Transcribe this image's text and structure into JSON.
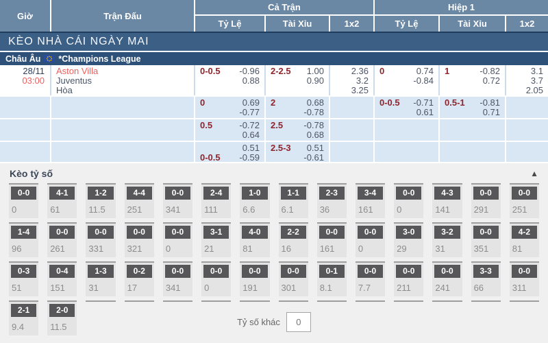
{
  "table_header": {
    "time": "Giờ",
    "match": "Trận Đấu",
    "full_time": "Cả Trận",
    "first_half": "Hiệp 1",
    "sub": {
      "hdp": "Tỷ Lệ",
      "ou": "Tài Xỉu",
      "oneXtwo": "1x2"
    }
  },
  "banner": {
    "title": "KÈO NHÀ CÁI NGÀY MAI"
  },
  "league": {
    "region": "Châu Âu",
    "flag_icon": "eu-flag-icon",
    "name": "*Champions League"
  },
  "match": {
    "date": "28/11",
    "time": "03:00",
    "home": "Aston Villa",
    "away": "Juventus",
    "draw_label": "Hòa"
  },
  "odds_rows": [
    [
      {
        "label": "0-0.5",
        "line": 1,
        "v1": "-0.96",
        "v2": "0.88"
      },
      {
        "label": "2-2.5",
        "line": 1,
        "v1": "1.00",
        "v2": "0.90"
      },
      {
        "x2": [
          "2.36",
          "3.2",
          "3.25"
        ]
      },
      {
        "label": "0",
        "line": 1,
        "v1": "0.74",
        "v2": "-0.84"
      },
      {
        "label": "1",
        "line": 1,
        "v1": "-0.82",
        "v2": "0.72"
      },
      {
        "x2": [
          "3.1",
          "3.7",
          "2.05"
        ]
      }
    ],
    [
      {
        "label": "0",
        "line": 1,
        "v1": "0.69",
        "v2": "-0.77"
      },
      {
        "label": "2",
        "line": 1,
        "v1": "0.68",
        "v2": "-0.78"
      },
      null,
      {
        "label": "0-0.5",
        "line": 1,
        "v1": "-0.71",
        "v2": "0.61"
      },
      {
        "label": "0.5-1",
        "line": 1,
        "v1": "-0.81",
        "v2": "0.71"
      },
      null
    ],
    [
      {
        "label": "0.5",
        "line": 1,
        "v1": "-0.72",
        "v2": "0.64"
      },
      {
        "label": "2.5",
        "line": 1,
        "v1": "-0.78",
        "v2": "0.68"
      },
      null,
      null,
      null,
      null
    ],
    [
      {
        "label": "0-0.5",
        "line": 2,
        "v1": "0.51",
        "v2": "-0.59"
      },
      {
        "label": "2.5-3",
        "line": 1,
        "v1": "0.51",
        "v2": "-0.61"
      },
      null,
      null,
      null,
      null
    ]
  ],
  "score_section": {
    "title": "Kèo tỷ số",
    "collapse_icon_glyph": "▲",
    "other_label": "Tỷ số khác",
    "other_value": "0",
    "rows": [
      [
        {
          "score": "0-0",
          "odds": "0"
        },
        {
          "score": "4-1",
          "odds": "61"
        },
        {
          "score": "1-2",
          "odds": "11.5"
        },
        {
          "score": "4-4",
          "odds": "251"
        },
        {
          "score": "0-0",
          "odds": "341"
        },
        {
          "score": "2-4",
          "odds": "111"
        },
        {
          "score": "1-0",
          "odds": "6.6"
        },
        {
          "score": "1-1",
          "odds": "6.1"
        },
        {
          "score": "2-3",
          "odds": "36"
        },
        {
          "score": "3-4",
          "odds": "161"
        },
        {
          "score": "0-0",
          "odds": "0"
        },
        {
          "score": "4-3",
          "odds": "141"
        },
        {
          "score": "0-0",
          "odds": "291"
        },
        {
          "score": "0-0",
          "odds": "251"
        }
      ],
      [
        {
          "score": "1-4",
          "odds": "96"
        },
        {
          "score": "0-0",
          "odds": "261"
        },
        {
          "score": "0-0",
          "odds": "331"
        },
        {
          "score": "0-0",
          "odds": "321"
        },
        {
          "score": "0-0",
          "odds": "0"
        },
        {
          "score": "3-1",
          "odds": "21"
        },
        {
          "score": "4-0",
          "odds": "81"
        },
        {
          "score": "2-2",
          "odds": "16"
        },
        {
          "score": "0-0",
          "odds": "161"
        },
        {
          "score": "0-0",
          "odds": "0"
        },
        {
          "score": "3-0",
          "odds": "29"
        },
        {
          "score": "3-2",
          "odds": "31"
        },
        {
          "score": "0-0",
          "odds": "351"
        },
        {
          "score": "4-2",
          "odds": "81"
        }
      ],
      [
        {
          "score": "0-3",
          "odds": "51"
        },
        {
          "score": "0-4",
          "odds": "151"
        },
        {
          "score": "1-3",
          "odds": "31"
        },
        {
          "score": "0-2",
          "odds": "17"
        },
        {
          "score": "0-0",
          "odds": "341"
        },
        {
          "score": "0-0",
          "odds": "0"
        },
        {
          "score": "0-0",
          "odds": "191"
        },
        {
          "score": "0-0",
          "odds": "301"
        },
        {
          "score": "0-1",
          "odds": "8.1"
        },
        {
          "score": "0-0",
          "odds": "7.7"
        },
        {
          "score": "0-0",
          "odds": "211"
        },
        {
          "score": "0-0",
          "odds": "241"
        },
        {
          "score": "3-3",
          "odds": "66"
        },
        {
          "score": "0-0",
          "odds": "311"
        }
      ],
      [
        {
          "score": "2-1",
          "odds": "9.4"
        },
        {
          "score": "2-0",
          "odds": "11.5"
        }
      ]
    ]
  },
  "colors": {
    "header_bg": "#6a87a3",
    "banner_bg": "#3c5f86",
    "league_bg": "#2e5179",
    "row_blue": "#d9e6f4",
    "handicap_label_red": "#8e252c",
    "odds_value_dark": "#4d5566",
    "team_red": "#ee5f5d",
    "score_box_gray": "#57575a",
    "score_cell_gray": "#e4e4e4"
  }
}
